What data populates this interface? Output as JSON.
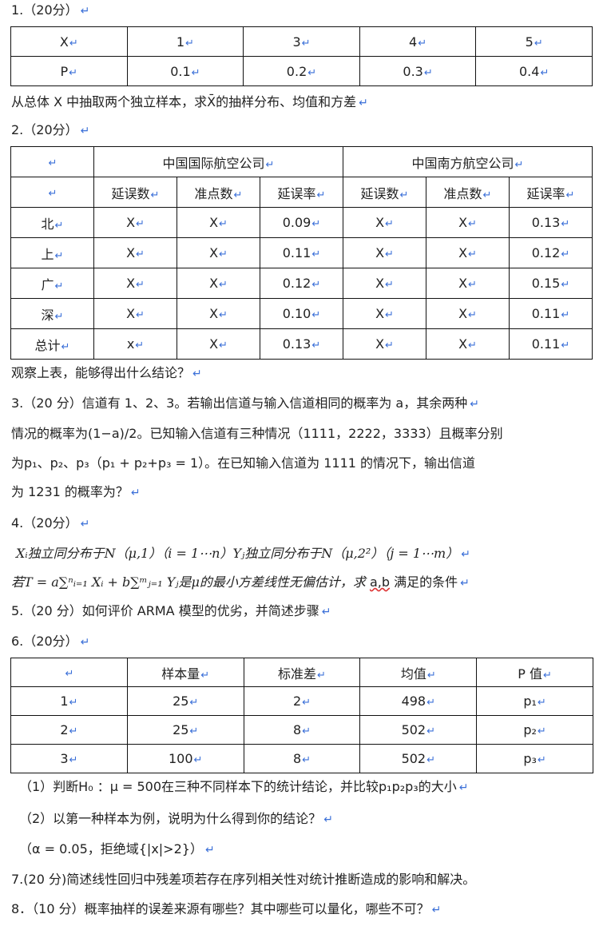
{
  "q1": {
    "title": "1.（20分）",
    "header": [
      "X",
      "1",
      "3",
      "4",
      "5"
    ],
    "row": [
      "P",
      "0.1",
      "0.2",
      "0.3",
      "0.4"
    ],
    "text": "从总体 X 中抽取两个独立样本，求X̄的抽样分布、均值和方差"
  },
  "q2": {
    "title": "2.（20分）",
    "groups": [
      "",
      "中国国际航空公司",
      "中国南方航空公司"
    ],
    "subheader": [
      "",
      "延误数",
      "准点数",
      "延误率",
      "延误数",
      "准点数",
      "延误率"
    ],
    "rows": [
      [
        "北",
        "X",
        "X",
        "0.09",
        "X",
        "X",
        "0.13"
      ],
      [
        "上",
        "X",
        "X",
        "0.11",
        "X",
        "X",
        "0.12"
      ],
      [
        "广",
        "X",
        "X",
        "0.12",
        "X",
        "X",
        "0.15"
      ],
      [
        "深",
        "X",
        "X",
        "0.10",
        "X",
        "X",
        "0.11"
      ],
      [
        "总计",
        "x",
        "X",
        "0.13",
        "X",
        "X",
        "0.11"
      ]
    ],
    "question": "观察上表，能够得出什么结论？"
  },
  "q3": {
    "lines": [
      "3.（20 分）信道有 1、2、3。若输出信道与输入信道相同的概率为 a，其余两种",
      "情况的概率为(1−a)/2。已知输入信道有三种情况（1111，2222，3333）且概率分别",
      "为p₁、p₂、p₃（p₁ + p₂+p₃ = 1）。在已知输入信道为 1111 的情况下，输出信道",
      "为 1231 的概率为？"
    ]
  },
  "q4": {
    "title": "4.（20分）",
    "line1": "Xᵢ独立同分布于N（μ,1）（i = 1⋯n）Yⱼ独立同分布于N（μ,2²）（j = 1⋯m）",
    "line2a": "若T = a∑ⁿᵢ₌₁ Xᵢ + b∑ᵐⱼ₌₁ Yⱼ是μ的最小方差线性无偏估计，求 ",
    "line2b": "a,b",
    "line2c": " 满足的条件"
  },
  "q5": {
    "text": "5.（20 分）如何评价 ARMA 模型的优劣，并简述步骤"
  },
  "q6": {
    "title": "6.（20分）",
    "header": [
      "",
      "样本量",
      "标准差",
      "均值",
      "P 值"
    ],
    "rows": [
      [
        "1",
        "25",
        "2",
        "498",
        "p₁"
      ],
      [
        "2",
        "25",
        "8",
        "502",
        "p₂"
      ],
      [
        "3",
        "100",
        "8",
        "502",
        "p₃"
      ]
    ],
    "sub1": "（1）判断H₀ ：μ = 500在三种不同样本下的统计结论，并比较p₁p₂p₃的大小",
    "sub2": "（2）以第一种样本为例，说明为什么得到你的结论？",
    "sub3": "（α = 0.05，拒绝域{|x|>2}）"
  },
  "q7": {
    "text": "7.(20 分)简述线性回归中残差项若存在序列相关性对统计推断造成的影响和解决。"
  },
  "q8": {
    "text": "8．（10 分）概率抽样的误差来源有哪些？其中哪些可以量化，哪些不可？"
  }
}
